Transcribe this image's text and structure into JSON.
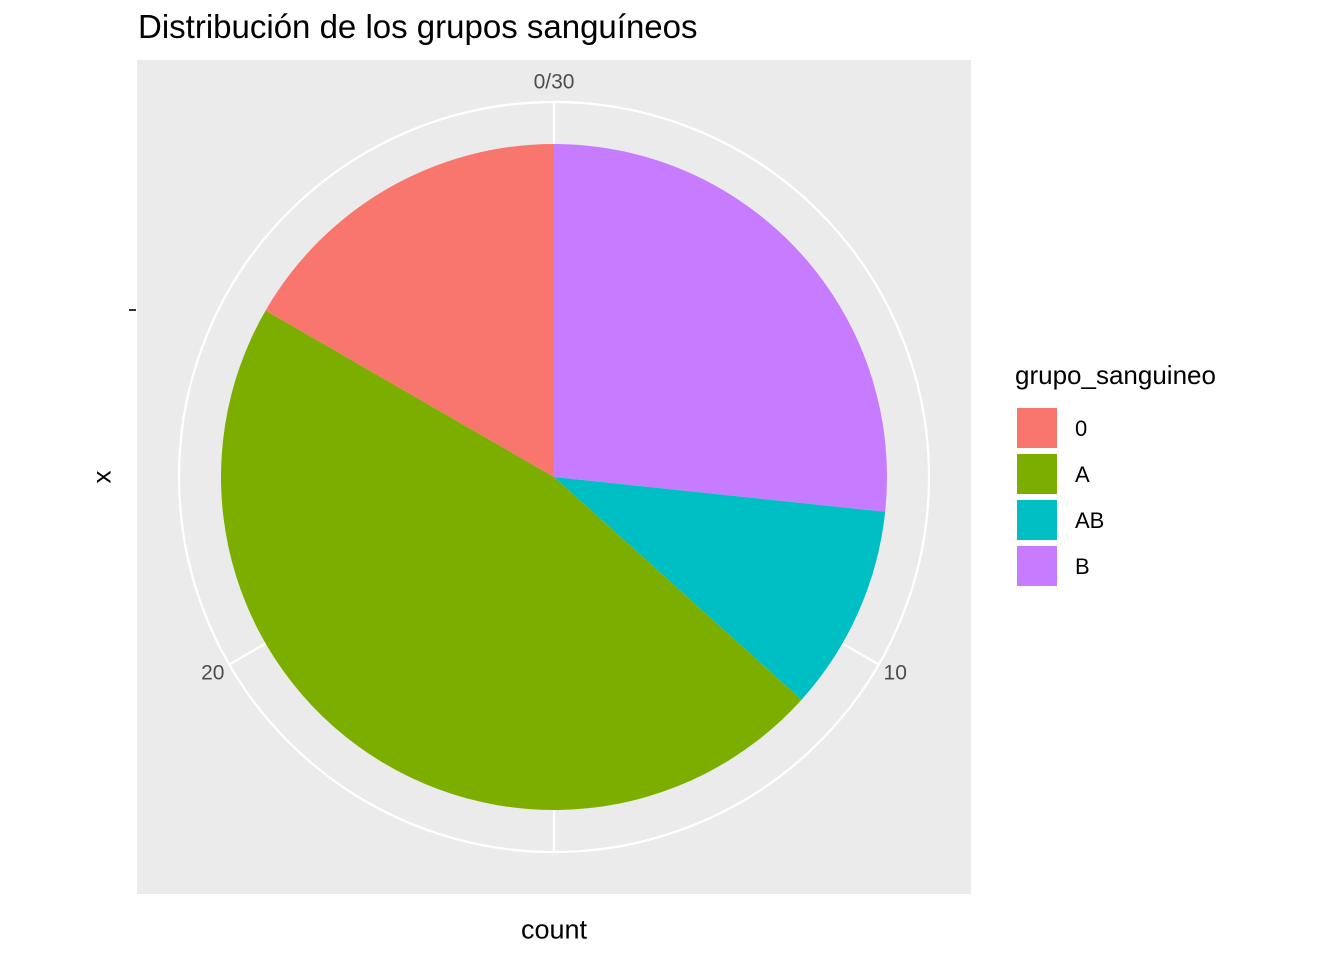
{
  "chart_data": {
    "type": "pie",
    "title": "Distribución de los grupos sanguíneos",
    "xlabel": "count",
    "ylabel": "x",
    "categories": [
      "0",
      "A",
      "AB",
      "B"
    ],
    "values": [
      5,
      14,
      3,
      8
    ],
    "total": 30,
    "colors": [
      "#F8766D",
      "#7CAE00",
      "#00BFC4",
      "#C77CFF"
    ],
    "angular_ticks": [
      {
        "value": 0,
        "label": "0/30"
      },
      {
        "value": 10,
        "label": "10"
      },
      {
        "value": 20,
        "label": "20"
      }
    ],
    "legend": {
      "title": "grupo_sanguineo",
      "placement": "right",
      "items": [
        "0",
        "A",
        "AB",
        "B"
      ]
    },
    "grid": true
  }
}
